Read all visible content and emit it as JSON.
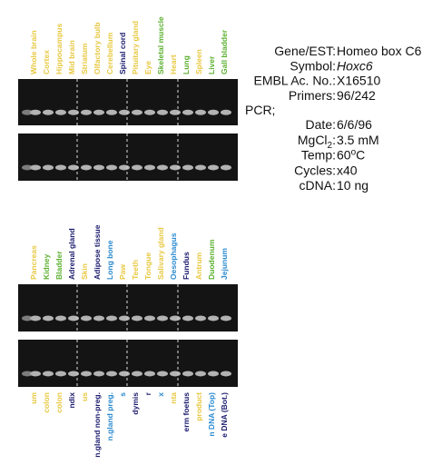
{
  "top_panel": {
    "lanes": [
      {
        "label": "Whole brain",
        "color": "#e8c840"
      },
      {
        "label": "Cortex",
        "color": "#e8c840"
      },
      {
        "label": "Hippocampus",
        "color": "#e8c840"
      },
      {
        "label": "Mid brain",
        "color": "#e8c840"
      },
      {
        "label": "Striatum",
        "color": "#e8c840"
      },
      {
        "label": "Olfactory bulb",
        "color": "#e8c840"
      },
      {
        "label": "Cerebellum",
        "color": "#e8c840"
      },
      {
        "label": "Spinal cord",
        "color": "#1a1a6e"
      },
      {
        "label": "Pituitary gland",
        "color": "#e8c840"
      },
      {
        "label": "Eye",
        "color": "#e8c840"
      },
      {
        "label": "Skeletal muscle",
        "color": "#5cb030"
      },
      {
        "label": "Heart",
        "color": "#e8c840"
      },
      {
        "label": "Lung",
        "color": "#5cb030"
      },
      {
        "label": "Spleen",
        "color": "#e8c840"
      },
      {
        "label": "Liver",
        "color": "#5cb030"
      },
      {
        "label": "Gall bladder",
        "color": "#5cb030"
      }
    ]
  },
  "middle_panel": {
    "lanes": [
      {
        "label": "Pancreas",
        "color": "#e8c840"
      },
      {
        "label": "Kidney",
        "color": "#5cb030"
      },
      {
        "label": "Bladder",
        "color": "#5cb030"
      },
      {
        "label": "Adrenal gland",
        "color": "#1a1a6e"
      },
      {
        "label": "Skin",
        "color": "#e8c840"
      },
      {
        "label": "Adipose tissue",
        "color": "#1a1a6e"
      },
      {
        "label": "Long bone",
        "color": "#2a8ad0"
      },
      {
        "label": "Paw",
        "color": "#e8c840"
      },
      {
        "label": "Teeth",
        "color": "#e8c840"
      },
      {
        "label": "Tongue",
        "color": "#e8c840"
      },
      {
        "label": "Salivary gland",
        "color": "#e8c840"
      },
      {
        "label": "Oesophagus",
        "color": "#2a8ad0"
      },
      {
        "label": "Fundus",
        "color": "#1a1a6e"
      },
      {
        "label": "Antrum",
        "color": "#e8c840"
      },
      {
        "label": "Duodenum",
        "color": "#5cb030"
      },
      {
        "label": "Jejunum",
        "color": "#2a8ad0"
      }
    ]
  },
  "bottom_panel": {
    "lanes": [
      {
        "label": "um",
        "color": "#e8c840"
      },
      {
        "label": "colon",
        "color": "#e8c840"
      },
      {
        "label": "colon",
        "color": "#e8c840"
      },
      {
        "label": "ndix",
        "color": "#1a1a6e"
      },
      {
        "label": "us",
        "color": "#e8c840"
      },
      {
        "label": "n.gland non-preg.",
        "color": "#1a1a6e"
      },
      {
        "label": "n.gland preg.",
        "color": "#2a8ad0"
      },
      {
        "label": "s",
        "color": "#2a8ad0"
      },
      {
        "label": "dymis",
        "color": "#1a1a6e"
      },
      {
        "label": "r",
        "color": "#1a1a6e"
      },
      {
        "label": "x",
        "color": "#2a8ad0"
      },
      {
        "label": "nta",
        "color": "#e8c840"
      },
      {
        "label": "erm foetus",
        "color": "#1a1a6e"
      },
      {
        "label": "product",
        "color": "#e8c840"
      },
      {
        "label": "n DNA (Top)",
        "color": "#2a8ad0"
      },
      {
        "label": "e DNA (Bot.)",
        "color": "#1a1a6e"
      }
    ]
  },
  "info": {
    "rows": [
      {
        "key": "Gene/EST:",
        "value": "Homeo box C6"
      },
      {
        "key": "Symbol:",
        "value": "Hoxc6",
        "italic": true
      },
      {
        "key": "EMBL Ac. No.:",
        "value": "X16510"
      },
      {
        "key": "Primers:",
        "value": "96/242"
      }
    ],
    "pcr_heading": "PCR;",
    "pcr_rows": [
      {
        "key": "Date:",
        "value": "6/6/96"
      },
      {
        "key": "MgCl",
        "key_sub": "2",
        "key_tail": ":",
        "value": "3.5 mM"
      },
      {
        "key": "Temp:",
        "value": "60",
        "value_sup": "o",
        "value_tail": "C"
      },
      {
        "key": "Cycles:",
        "value": "x40"
      },
      {
        "key": "cDNA:",
        "value": "10 ng"
      }
    ]
  }
}
